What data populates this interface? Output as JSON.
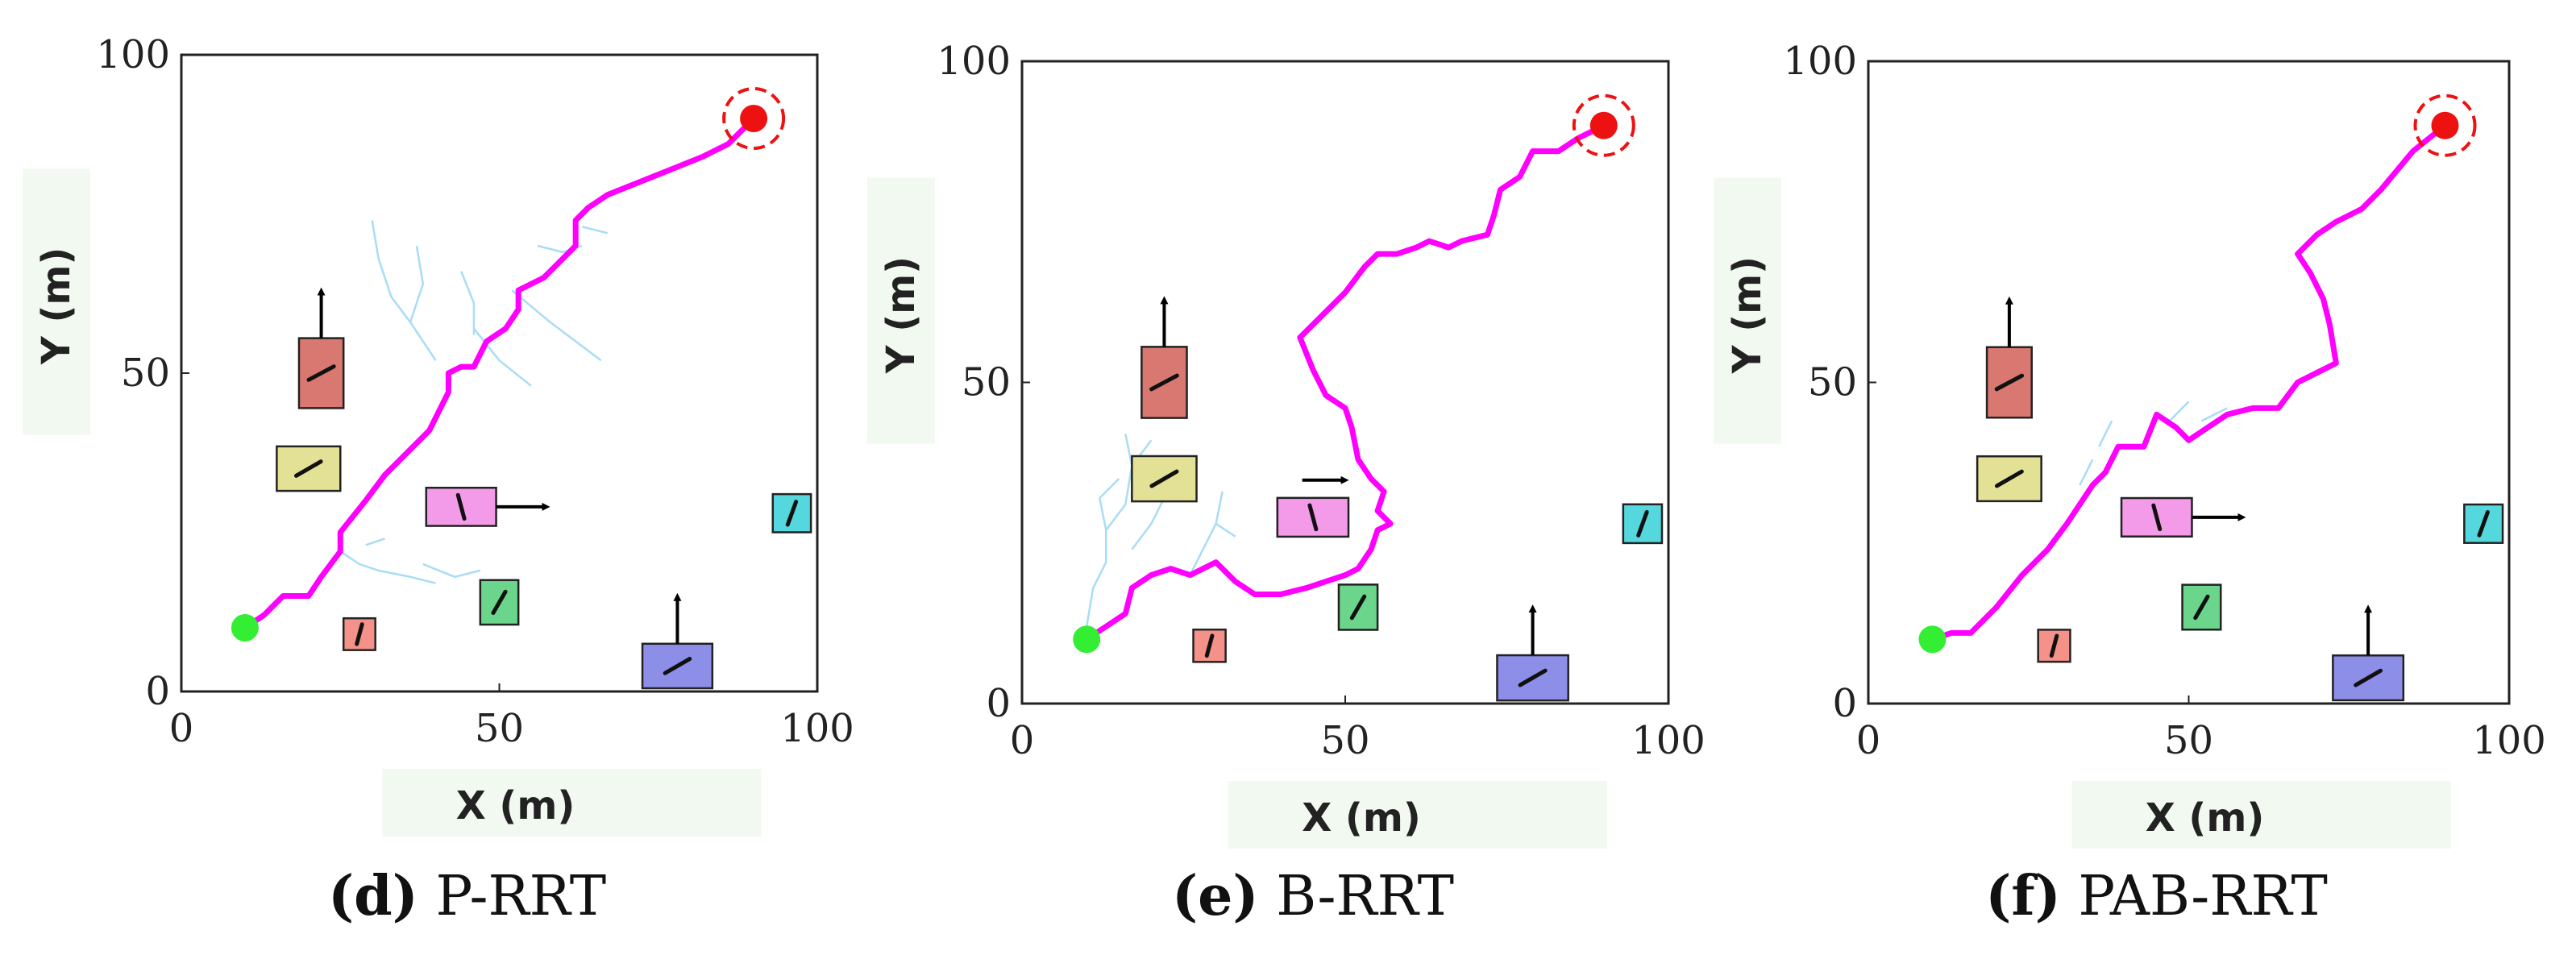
{
  "colors": {
    "path": "#ff00ff",
    "tree": "#a9dcf5",
    "start": "#33ee33",
    "goal": "#ee1111",
    "axis_label_bg": "#f2f9f0"
  },
  "chart_data": [
    {
      "type": "scatter",
      "caption": {
        "letter": "(d)",
        "text": " P-RRT"
      },
      "xlabel": "X (m)",
      "ylabel": "Y (m)",
      "xlim": [
        0,
        100
      ],
      "ylim": [
        0,
        100
      ],
      "xticks": [
        "0",
        "50",
        "100"
      ],
      "yticks": [
        "0",
        "50",
        "100"
      ],
      "start": [
        10,
        10
      ],
      "goal": [
        90,
        90
      ],
      "path": [
        [
          10,
          10
        ],
        [
          13,
          12
        ],
        [
          16,
          15
        ],
        [
          20,
          15
        ],
        [
          22,
          18
        ],
        [
          25,
          22
        ],
        [
          25,
          25
        ],
        [
          29,
          30
        ],
        [
          32,
          34
        ],
        [
          35,
          37
        ],
        [
          39,
          41
        ],
        [
          42,
          47
        ],
        [
          42,
          50
        ],
        [
          44,
          51
        ],
        [
          46,
          51
        ],
        [
          48,
          55
        ],
        [
          51,
          57
        ],
        [
          53,
          60
        ],
        [
          53,
          63
        ],
        [
          57,
          65
        ],
        [
          60,
          68
        ],
        [
          62,
          70
        ],
        [
          62,
          74
        ],
        [
          64,
          76
        ],
        [
          67,
          78
        ],
        [
          72,
          80
        ],
        [
          77,
          82
        ],
        [
          82,
          84
        ],
        [
          86,
          86
        ],
        [
          90,
          90
        ]
      ],
      "tree": [
        [
          [
            30,
            74
          ],
          [
            31,
            68
          ],
          [
            33,
            62
          ],
          [
            36,
            58
          ],
          [
            40,
            52
          ]
        ],
        [
          [
            36,
            58
          ],
          [
            38,
            64
          ],
          [
            37,
            70
          ]
        ],
        [
          [
            46,
            57
          ],
          [
            50,
            52
          ],
          [
            55,
            48
          ]
        ],
        [
          [
            44,
            66
          ],
          [
            46,
            61
          ],
          [
            46,
            56
          ]
        ],
        [
          [
            52,
            63
          ],
          [
            58,
            58
          ],
          [
            62,
            55
          ],
          [
            66,
            52
          ]
        ],
        [
          [
            56,
            70
          ],
          [
            60,
            69
          ],
          [
            63,
            70
          ]
        ],
        [
          [
            63,
            73
          ],
          [
            67,
            72
          ]
        ],
        [
          [
            25,
            22
          ],
          [
            28,
            20
          ],
          [
            31,
            19
          ],
          [
            36,
            18
          ],
          [
            40,
            17
          ]
        ],
        [
          [
            38,
            20
          ],
          [
            43,
            18
          ],
          [
            47,
            19
          ]
        ],
        [
          [
            29,
            23
          ],
          [
            32,
            24
          ]
        ]
      ],
      "obstacles": [
        {
          "cx": 22,
          "cy": 50,
          "w": 7,
          "h": 11,
          "color": "#d97871",
          "heading": 28,
          "arrow": "up"
        },
        {
          "cx": 20,
          "cy": 35,
          "w": 10,
          "h": 7,
          "color": "#e3e196",
          "heading": 30,
          "arrow": ""
        },
        {
          "cx": 44,
          "cy": 29,
          "w": 11,
          "h": 6,
          "color": "#f39ae8",
          "heading": 105,
          "arrow": "right"
        },
        {
          "cx": 50,
          "cy": 14,
          "w": 6,
          "h": 7,
          "color": "#6bd58b",
          "heading": 60,
          "arrow": ""
        },
        {
          "cx": 28,
          "cy": 9,
          "w": 5,
          "h": 5,
          "color": "#f4928a",
          "heading": 75,
          "arrow": ""
        },
        {
          "cx": 78,
          "cy": 4,
          "w": 11,
          "h": 7,
          "color": "#8c8ee8",
          "heading": 30,
          "arrow": "up"
        },
        {
          "cx": 96,
          "cy": 28,
          "w": 6,
          "h": 6,
          "color": "#55d8dd",
          "heading": 70,
          "arrow": ""
        }
      ]
    },
    {
      "type": "scatter",
      "caption": {
        "letter": "(e)",
        "text": " B-RRT"
      },
      "xlabel": "X (m)",
      "ylabel": "Y (m)",
      "xlim": [
        0,
        100
      ],
      "ylim": [
        0,
        100
      ],
      "xticks": [
        "0",
        "50",
        "100"
      ],
      "yticks": [
        "0",
        "50",
        "100"
      ],
      "start": [
        10,
        10
      ],
      "goal": [
        90,
        90
      ],
      "path": [
        [
          10,
          10
        ],
        [
          13,
          12
        ],
        [
          16,
          14
        ],
        [
          17,
          18
        ],
        [
          20,
          20
        ],
        [
          23,
          21
        ],
        [
          26,
          20
        ],
        [
          28,
          21
        ],
        [
          30,
          22
        ],
        [
          31,
          21
        ],
        [
          33,
          19
        ],
        [
          36,
          17
        ],
        [
          40,
          17
        ],
        [
          44,
          18
        ],
        [
          47,
          19
        ],
        [
          50,
          20
        ],
        [
          52,
          21
        ],
        [
          54,
          24
        ],
        [
          55,
          27
        ],
        [
          57,
          28
        ],
        [
          55,
          30
        ],
        [
          56,
          33
        ],
        [
          54,
          35
        ],
        [
          52,
          38
        ],
        [
          51,
          43
        ],
        [
          50,
          46
        ],
        [
          47,
          48
        ],
        [
          45,
          52
        ],
        [
          43,
          57
        ],
        [
          47,
          61
        ],
        [
          50,
          64
        ],
        [
          53,
          68
        ],
        [
          55,
          70
        ],
        [
          58,
          70
        ],
        [
          61,
          71
        ],
        [
          63,
          72
        ],
        [
          66,
          71
        ],
        [
          68,
          72
        ],
        [
          72,
          73
        ],
        [
          73,
          76
        ],
        [
          74,
          80
        ],
        [
          77,
          82
        ],
        [
          79,
          86
        ],
        [
          83,
          86
        ],
        [
          86,
          88
        ],
        [
          90,
          90
        ]
      ],
      "tree": [
        [
          [
            10,
            12
          ],
          [
            11,
            18
          ],
          [
            13,
            22
          ],
          [
            13,
            27
          ],
          [
            12,
            32
          ]
        ],
        [
          [
            13,
            27
          ],
          [
            16,
            31
          ],
          [
            17,
            37
          ],
          [
            16,
            42
          ]
        ],
        [
          [
            17,
            37
          ],
          [
            20,
            41
          ]
        ],
        [
          [
            17,
            24
          ],
          [
            20,
            28
          ],
          [
            22,
            32
          ]
        ],
        [
          [
            12,
            32
          ],
          [
            15,
            35
          ]
        ],
        [
          [
            26,
            20
          ],
          [
            28,
            24
          ],
          [
            30,
            28
          ],
          [
            33,
            26
          ]
        ],
        [
          [
            30,
            28
          ],
          [
            31,
            33
          ]
        ]
      ],
      "obstacles": [
        {
          "cx": 22,
          "cy": 50,
          "w": 7,
          "h": 11,
          "color": "#d97871",
          "heading": 28,
          "arrow": "up"
        },
        {
          "cx": 22,
          "cy": 35,
          "w": 10,
          "h": 7,
          "color": "#e3e196",
          "heading": 30,
          "arrow": ""
        },
        {
          "cx": 45,
          "cy": 29,
          "w": 11,
          "h": 6,
          "color": "#f39ae8",
          "heading": 105,
          "arrow": "right-above"
        },
        {
          "cx": 52,
          "cy": 15,
          "w": 6,
          "h": 7,
          "color": "#6bd58b",
          "heading": 60,
          "arrow": ""
        },
        {
          "cx": 29,
          "cy": 9,
          "w": 5,
          "h": 5,
          "color": "#f4928a",
          "heading": 75,
          "arrow": ""
        },
        {
          "cx": 79,
          "cy": 4,
          "w": 11,
          "h": 7,
          "color": "#8c8ee8",
          "heading": 30,
          "arrow": "up"
        },
        {
          "cx": 96,
          "cy": 28,
          "w": 6,
          "h": 6,
          "color": "#55d8dd",
          "heading": 70,
          "arrow": ""
        }
      ]
    },
    {
      "type": "scatter",
      "caption": {
        "letter": "(f)",
        "text": " PAB-RRT"
      },
      "xlabel": "X (m)",
      "ylabel": "Y (m)",
      "xlim": [
        0,
        100
      ],
      "ylim": [
        0,
        100
      ],
      "xticks": [
        "0",
        "50",
        "100"
      ],
      "yticks": [
        "0",
        "50",
        "100"
      ],
      "start": [
        10,
        10
      ],
      "goal": [
        90,
        90
      ],
      "path": [
        [
          10,
          10
        ],
        [
          13,
          11
        ],
        [
          16,
          11
        ],
        [
          20,
          15
        ],
        [
          24,
          20
        ],
        [
          28,
          24
        ],
        [
          31,
          28
        ],
        [
          33,
          31
        ],
        [
          35,
          34
        ],
        [
          37,
          36
        ],
        [
          39,
          40
        ],
        [
          43,
          40
        ],
        [
          45,
          45
        ],
        [
          48,
          43
        ],
        [
          50,
          41
        ],
        [
          53,
          43
        ],
        [
          56,
          45
        ],
        [
          60,
          46
        ],
        [
          64,
          46
        ],
        [
          67,
          50
        ],
        [
          71,
          52
        ],
        [
          73,
          53
        ],
        [
          72,
          59
        ],
        [
          71,
          63
        ],
        [
          69,
          67
        ],
        [
          67,
          70
        ],
        [
          70,
          73
        ],
        [
          73,
          75
        ],
        [
          77,
          77
        ],
        [
          80,
          80
        ],
        [
          85,
          86
        ],
        [
          90,
          90
        ]
      ],
      "tree": [
        [
          [
            33,
            34
          ],
          [
            35,
            38
          ]
        ],
        [
          [
            36,
            40
          ],
          [
            38,
            44
          ]
        ],
        [
          [
            47,
            44
          ],
          [
            50,
            47
          ]
        ],
        [
          [
            52,
            44
          ],
          [
            56,
            46
          ]
        ]
      ],
      "obstacles": [
        {
          "cx": 22,
          "cy": 50,
          "w": 7,
          "h": 11,
          "color": "#d97871",
          "heading": 28,
          "arrow": "up"
        },
        {
          "cx": 22,
          "cy": 35,
          "w": 10,
          "h": 7,
          "color": "#e3e196",
          "heading": 30,
          "arrow": ""
        },
        {
          "cx": 45,
          "cy": 29,
          "w": 11,
          "h": 6,
          "color": "#f39ae8",
          "heading": 105,
          "arrow": "right"
        },
        {
          "cx": 52,
          "cy": 15,
          "w": 6,
          "h": 7,
          "color": "#6bd58b",
          "heading": 60,
          "arrow": ""
        },
        {
          "cx": 29,
          "cy": 9,
          "w": 5,
          "h": 5,
          "color": "#f4928a",
          "heading": 75,
          "arrow": ""
        },
        {
          "cx": 78,
          "cy": 4,
          "w": 11,
          "h": 7,
          "color": "#8c8ee8",
          "heading": 30,
          "arrow": "up"
        },
        {
          "cx": 96,
          "cy": 28,
          "w": 6,
          "h": 6,
          "color": "#55d8dd",
          "heading": 70,
          "arrow": ""
        }
      ]
    }
  ]
}
